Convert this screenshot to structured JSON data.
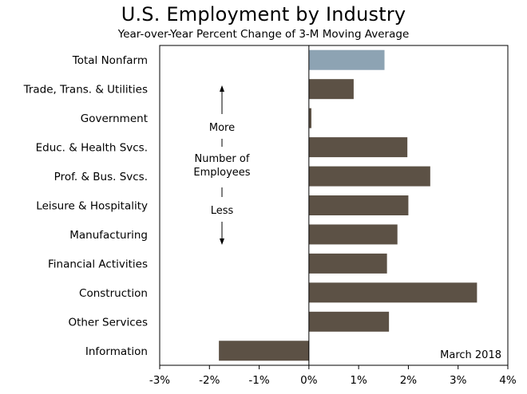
{
  "chart_data": {
    "type": "bar",
    "orientation": "horizontal",
    "title": "U.S. Employment by Industry",
    "subtitle": "Year-over-Year Percent Change of 3-M Moving Average",
    "categories": [
      "Total Nonfarm",
      "Trade, Trans. & Utilities",
      "Government",
      "Educ. & Health Svcs.",
      "Prof. & Bus. Svcs.",
      "Leisure & Hospitality",
      "Manufacturing",
      "Financial Activities",
      "Construction",
      "Other Services",
      "Information"
    ],
    "values": [
      1.52,
      0.9,
      0.05,
      1.98,
      2.44,
      2.0,
      1.78,
      1.57,
      3.38,
      1.61,
      -1.81
    ],
    "colors": [
      "#8da3b3",
      "#5c5145",
      "#5c5145",
      "#5c5145",
      "#5c5145",
      "#5c5145",
      "#5c5145",
      "#5c5145",
      "#5c5145",
      "#5c5145",
      "#5c5145"
    ],
    "xlim": [
      -3,
      4
    ],
    "xticks": [
      -3,
      -2,
      -1,
      0,
      1,
      2,
      3,
      4
    ],
    "xtick_labels": [
      "-3%",
      "-2%",
      "-1%",
      "0%",
      "1%",
      "2%",
      "3%",
      "4%"
    ],
    "annotation": "March 2018",
    "side_note": {
      "top": "More",
      "middle": [
        "Number of",
        "Employees"
      ],
      "bottom": "Less"
    },
    "grid": false
  }
}
